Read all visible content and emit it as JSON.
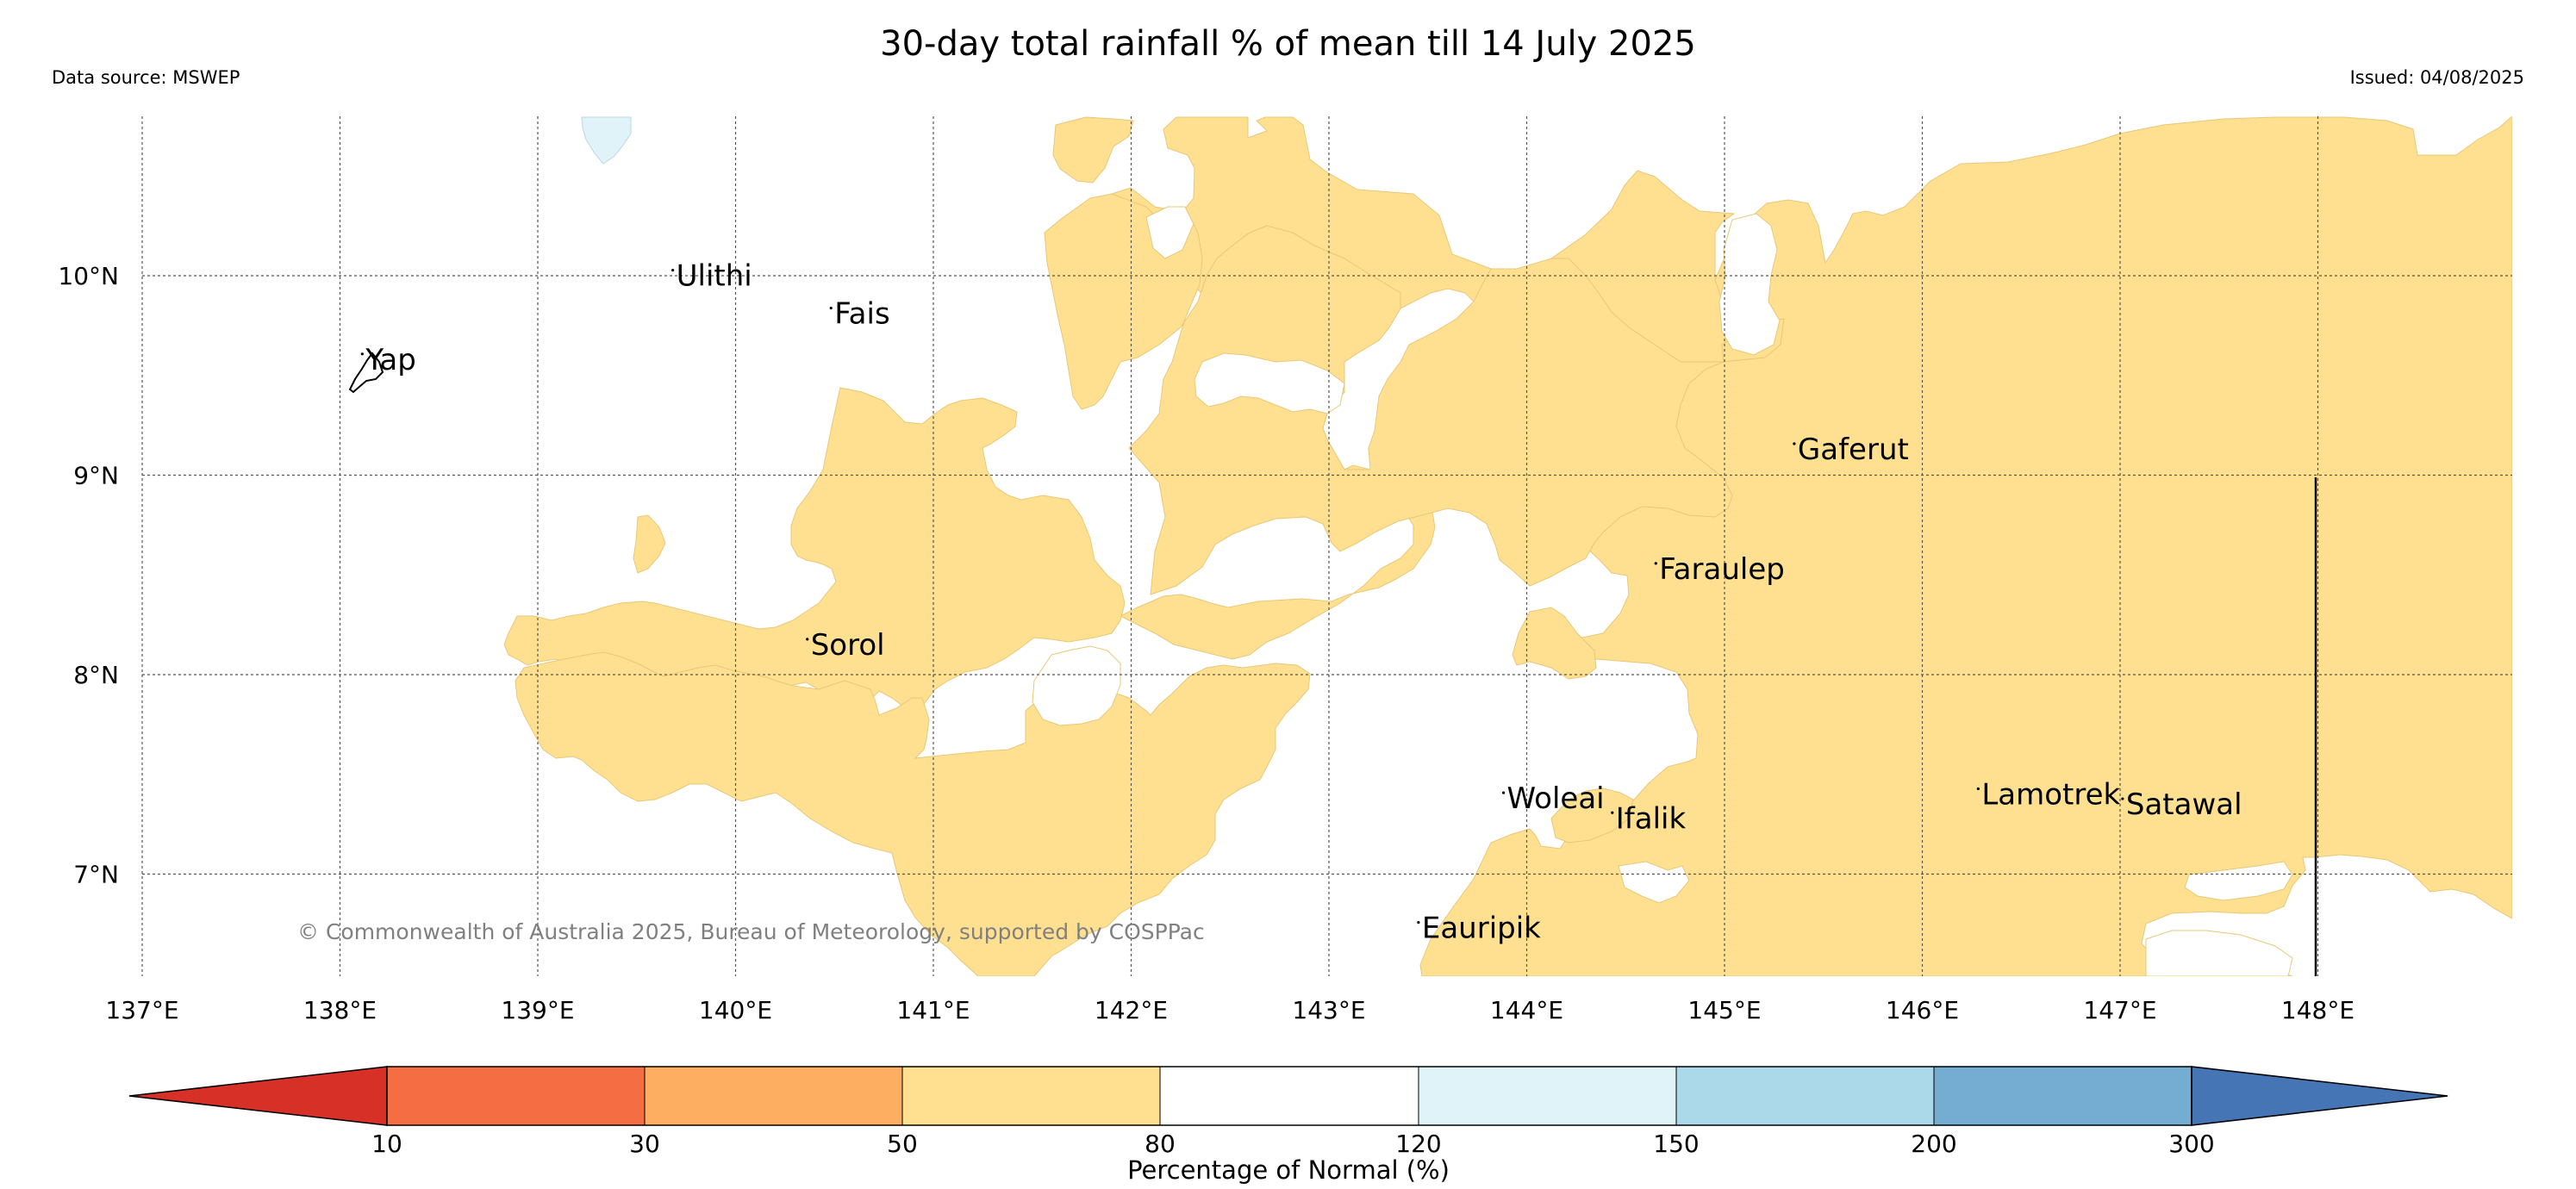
{
  "header": {
    "title": "30-day total rainfall % of mean till 14 July 2025",
    "source": "Data source: MSWEP",
    "issued": "Issued: 04/08/2025"
  },
  "map": {
    "lon_range": [
      137,
      149
    ],
    "lat_range": [
      6.5,
      10.8
    ],
    "x_ticks": [
      "137°E",
      "138°E",
      "139°E",
      "140°E",
      "141°E",
      "142°E",
      "143°E",
      "144°E",
      "145°E",
      "146°E",
      "147°E",
      "148°E"
    ],
    "y_ticks": [
      "10°N",
      "9°N",
      "8°N",
      "7°N"
    ],
    "places": [
      {
        "name": "Yap",
        "lon": 138.13,
        "lat": 9.53
      },
      {
        "name": "Ulithi",
        "lon": 139.7,
        "lat": 9.95
      },
      {
        "name": "Fais",
        "lon": 140.5,
        "lat": 9.76
      },
      {
        "name": "Gaferut",
        "lon": 145.37,
        "lat": 9.08
      },
      {
        "name": "Faraulep",
        "lon": 144.67,
        "lat": 8.48
      },
      {
        "name": "Sorol",
        "lon": 140.38,
        "lat": 8.1
      },
      {
        "name": "Woleai",
        "lon": 143.9,
        "lat": 7.33
      },
      {
        "name": "Ifalik",
        "lon": 144.45,
        "lat": 7.23
      },
      {
        "name": "Lamotrek",
        "lon": 146.3,
        "lat": 7.35
      },
      {
        "name": "Satawal",
        "lon": 147.03,
        "lat": 7.3
      },
      {
        "name": "Eauripik",
        "lon": 143.47,
        "lat": 6.68
      }
    ],
    "copyright": "© Commonwealth of Australia 2025, Bureau of Meteorology, supported by COSPPac",
    "fill_colors": {
      "50-80": "#fee090",
      "150-200": "#e0f3f8",
      "land": "#ffffff"
    }
  },
  "colorbar": {
    "label": "Percentage of Normal (%)",
    "ticks": [
      "10",
      "30",
      "50",
      "80",
      "120",
      "150",
      "200",
      "300"
    ],
    "colors": [
      "#d73027",
      "#f46d43",
      "#fdae61",
      "#fee090",
      "#ffffff",
      "#e0f3f8",
      "#abd9e9",
      "#74add1",
      "#4575b4"
    ]
  }
}
